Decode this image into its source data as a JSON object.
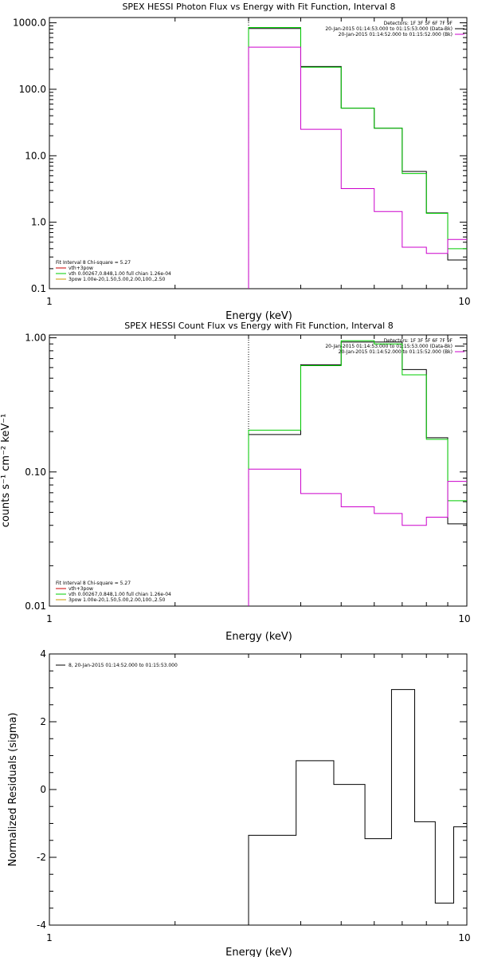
{
  "chart_data": [
    {
      "type": "line",
      "title": "SPEX HESSI Photon Flux vs Energy with Fit Function, Interval 8",
      "xlabel": "Energy (keV)",
      "ylabel": "",
      "xscale": "log",
      "yscale": "log",
      "xlim": [
        1,
        10
      ],
      "ylim": [
        0.1,
        1200
      ],
      "x_ticks": [
        1,
        10
      ],
      "y_ticks": [
        "1000.0",
        "100.0",
        "10.0",
        "1.0",
        "0.1"
      ],
      "vline_x": 3.0,
      "legend_right": [
        "Detectors: 1F 3F 5F 6F 7F 9F",
        "20-Jan-2015 01:14:53.000 to 01:15:53.000 (Data-Bk)",
        "20-Jan-2015 01:14:52.000 to 01:15:52.000 (Bk)"
      ],
      "fit_info": [
        "Fit Interval 8   Chi-square = 5.27",
        "vth+3pow",
        "vth 0.00267,0.848,1.00  full chian 1.26e-04",
        "3pow 1.00e-20,1.50,5.00,2.00,100.,2.50"
      ],
      "bin_edges": [
        3.0,
        4.0,
        5.0,
        6.0,
        7.0,
        8.0,
        9.0,
        10.0
      ],
      "series": [
        {
          "name": "Data-Bk",
          "color": "#000000",
          "values": [
            820,
            220,
            52,
            26,
            5.8,
            1.38,
            0.27
          ]
        },
        {
          "name": "vth+3pow",
          "color": "#00cc00",
          "values": [
            850,
            215,
            52,
            26,
            5.4,
            1.36,
            0.4
          ]
        },
        {
          "name": "Bk",
          "color": "#cc00cc",
          "values": [
            430,
            25,
            3.2,
            1.45,
            0.42,
            0.34,
            0.55
          ]
        }
      ]
    },
    {
      "type": "line",
      "title": "SPEX HESSI Count Flux vs Energy with Fit Function, Interval 8",
      "xlabel": "Energy (keV)",
      "ylabel": "counts s⁻¹ cm⁻² keV⁻¹",
      "xscale": "log",
      "yscale": "log",
      "xlim": [
        1,
        10
      ],
      "ylim": [
        0.01,
        1.05
      ],
      "x_ticks": [
        1,
        10
      ],
      "y_ticks": [
        "1.00",
        "0.10",
        "0.01"
      ],
      "vline_x": 3.0,
      "legend_right": [
        "Detectors: 1F 3F 5F 6F 7F 9F",
        "20-Jan-2015 01:14:53.000 to 01:15:53.000 (Data-Bk)",
        "20-Jan-2015 01:14:52.000 to 01:15:52.000 (Bk)"
      ],
      "fit_info": [
        "Fit Interval 8   Chi-square = 5.27",
        "vth+3pow",
        "vth 0.00267,0.848,1.00  full chian 1.26e-04",
        "3pow 1.00e-20,1.50,5.00,2.00,100.,2.50"
      ],
      "bin_edges": [
        3.0,
        4.0,
        5.0,
        6.0,
        7.0,
        8.0,
        9.0,
        10.0
      ],
      "series": [
        {
          "name": "Data-Bk",
          "color": "#000000",
          "values": [
            0.19,
            0.63,
            0.93,
            0.93,
            0.58,
            0.18,
            0.041
          ]
        },
        {
          "name": "vth+3pow",
          "color": "#00cc00",
          "values": [
            0.205,
            0.62,
            0.95,
            0.9,
            0.53,
            0.175,
            0.061
          ]
        },
        {
          "name": "Bk",
          "color": "#cc00cc",
          "values": [
            0.105,
            0.069,
            0.055,
            0.049,
            0.04,
            0.046,
            0.085
          ]
        }
      ]
    },
    {
      "type": "line",
      "title": "",
      "xlabel": "Energy (keV)",
      "ylabel": "Normalized Residuals (sigma)",
      "xscale": "log",
      "yscale": "linear",
      "xlim": [
        1,
        10
      ],
      "ylim": [
        -4,
        4
      ],
      "x_ticks": [
        1,
        10
      ],
      "y_ticks": [
        4,
        2,
        0,
        -2,
        -4
      ],
      "legend": "8, 20-Jan-2015 01:14:52.000 to 01:15:53.000",
      "bin_edges": [
        3.0,
        3.9,
        4.8,
        5.7,
        6.6,
        7.5,
        8.4,
        9.3,
        10.0
      ],
      "series": [
        {
          "name": "",
          "color": "#000000",
          "values": [
            -1.35,
            0.85,
            0.15,
            -1.45,
            2.95,
            -0.95,
            -3.35,
            -1.1
          ]
        }
      ]
    }
  ]
}
